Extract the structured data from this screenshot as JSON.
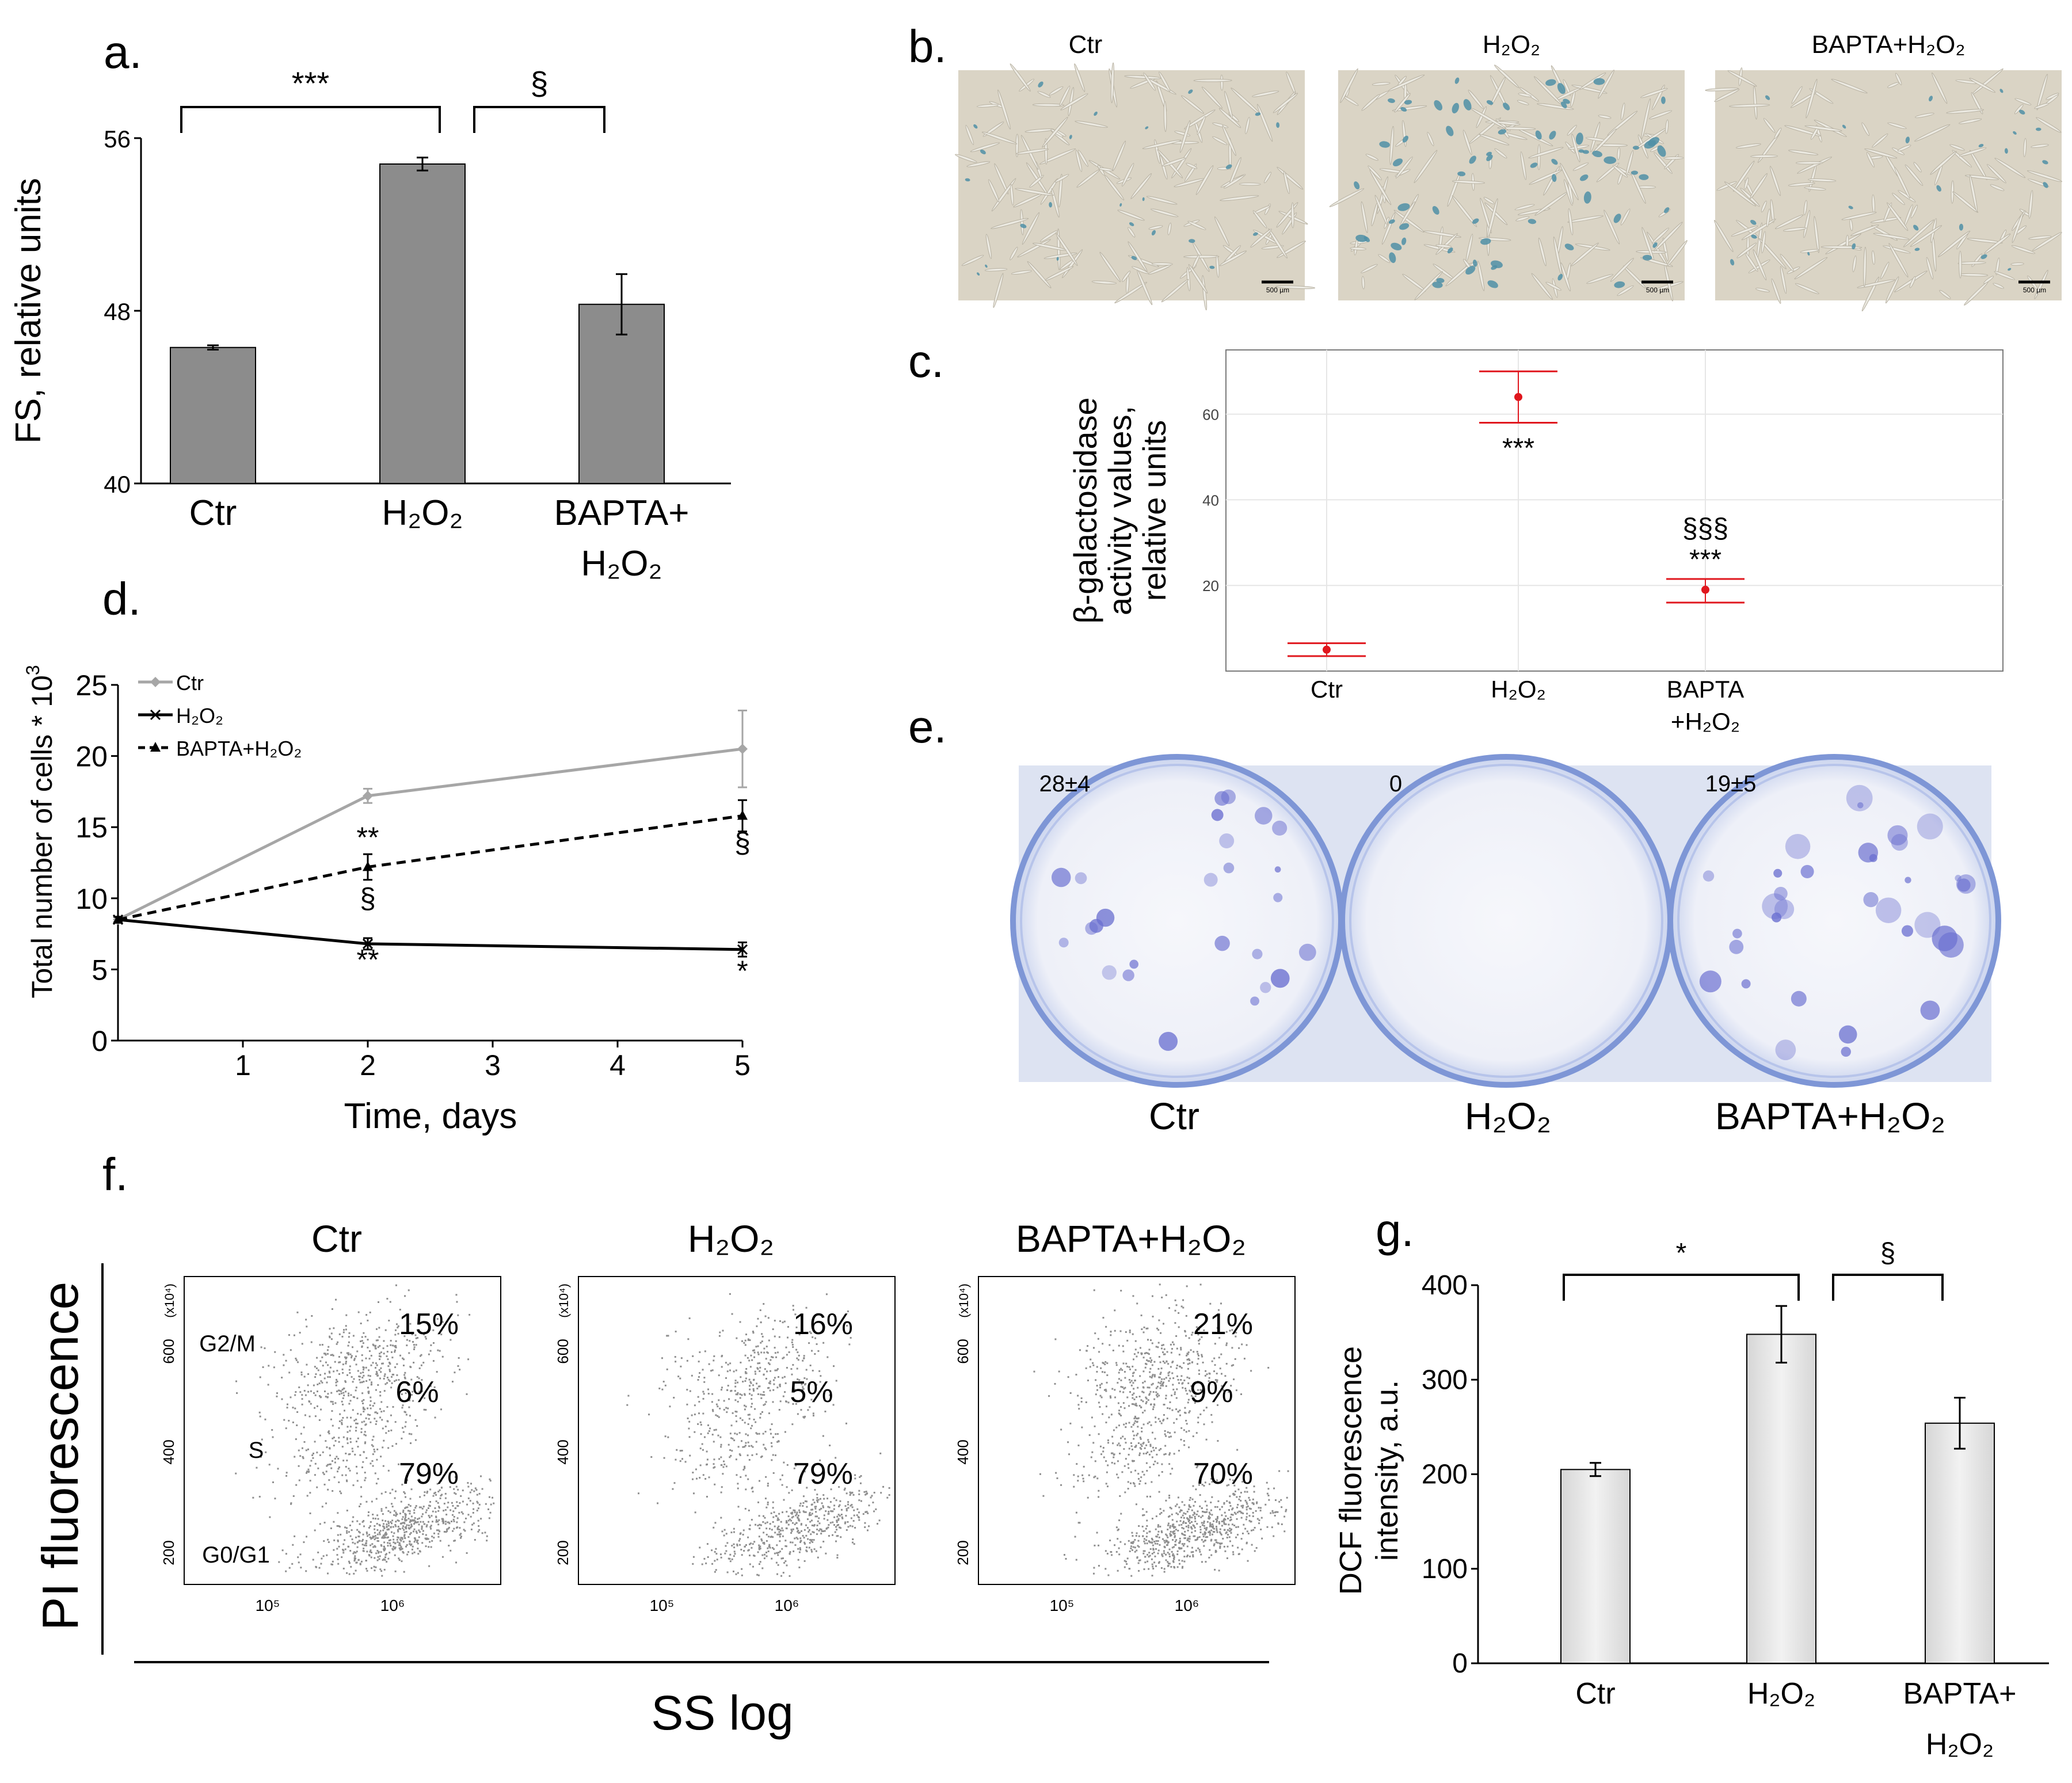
{
  "panels": {
    "a": "a.",
    "b": "b.",
    "c": "c.",
    "d": "d.",
    "e": "e.",
    "f": "f.",
    "g": "g."
  },
  "chart_data": [
    {
      "id": "a",
      "type": "bar",
      "categories": [
        "Ctr",
        "H₂O₂",
        "BAPTA+H₂O₂"
      ],
      "category_lines": [
        [
          "Ctr"
        ],
        [
          "H₂O₂"
        ],
        [
          "BAPTA+",
          "H₂O₂"
        ]
      ],
      "values": [
        46.3,
        54.8,
        48.3
      ],
      "errors": [
        0.1,
        0.3,
        1.4
      ],
      "ylabel": "FS, relative units",
      "ylim": [
        40,
        56
      ],
      "yticks": [
        40,
        48,
        56
      ],
      "brackets": [
        {
          "from": 0,
          "to": 1,
          "label": "***"
        },
        {
          "from": 1,
          "to": 2,
          "label": "§"
        }
      ],
      "bar_color": "#8c8c8c"
    },
    {
      "id": "b",
      "type": "image",
      "images": [
        {
          "title": "Ctr",
          "scale_label": "500 µm",
          "stain_density": "low"
        },
        {
          "title": "H₂O₂",
          "scale_label": "500 µm",
          "stain_density": "high"
        },
        {
          "title": "BAPTA+H₂O₂",
          "scale_label": "500 µm",
          "stain_density": "low"
        }
      ]
    },
    {
      "id": "c",
      "type": "scatter",
      "categories": [
        "Ctr",
        "H₂O₂",
        "BAPTA+H₂O₂"
      ],
      "category_lines": [
        [
          "Ctr"
        ],
        [
          "H₂O₂"
        ],
        [
          "BAPTA",
          "+H₂O₂"
        ]
      ],
      "values": [
        5,
        64,
        19
      ],
      "lower": [
        3.5,
        58,
        16
      ],
      "upper": [
        6.5,
        70,
        21.5
      ],
      "ylabel_lines": [
        "β-galactosidase",
        "activity values,",
        "relative units"
      ],
      "ylim": [
        0,
        75
      ],
      "yticks": [
        20,
        40,
        60
      ],
      "annotations": [
        "",
        "***",
        "§§§\n***"
      ],
      "point_color": "#e0161d",
      "grid": true
    },
    {
      "id": "d",
      "type": "line",
      "x_ticks": [
        1,
        2,
        3,
        4,
        5
      ],
      "xlim": [
        0,
        5
      ],
      "ylim": [
        0,
        25
      ],
      "yticks": [
        0,
        5,
        10,
        15,
        20,
        25
      ],
      "xlabel": "Time, days",
      "ylabel": "Total number of cells * 10",
      "ylabel_sup": "3",
      "legend_position": "top-left",
      "series": [
        {
          "name": "Ctr",
          "x": [
            0,
            2,
            5
          ],
          "y": [
            8.5,
            17.2,
            20.5
          ],
          "err": [
            0.2,
            0.5,
            2.7
          ],
          "color": "#a6a6a6",
          "dash": "solid",
          "marker": "diamond"
        },
        {
          "name": "H₂O₂",
          "x": [
            0,
            2,
            5
          ],
          "y": [
            8.5,
            6.8,
            6.4
          ],
          "err": [
            0.2,
            0.4,
            0.5
          ],
          "color": "#000000",
          "dash": "solid",
          "marker": "x"
        },
        {
          "name": "BAPTA+H₂O₂",
          "x": [
            0,
            2,
            5
          ],
          "y": [
            8.5,
            12.2,
            15.8
          ],
          "err": [
            0.2,
            0.9,
            1.1
          ],
          "color": "#000000",
          "dash": "dashed",
          "marker": "triangle"
        }
      ],
      "annotations": [
        {
          "x": 2,
          "y": 13.6,
          "text": "**"
        },
        {
          "x": 2,
          "y": 9.3,
          "text": "§"
        },
        {
          "x": 2,
          "y": 5.0,
          "text": "**"
        },
        {
          "x": 5,
          "y": 13.2,
          "text": "§"
        },
        {
          "x": 5,
          "y": 4.2,
          "text": "*"
        }
      ]
    },
    {
      "id": "e",
      "type": "image",
      "plates": [
        {
          "label": "Ctr",
          "count": "28±4",
          "colonies": "medium"
        },
        {
          "label": "H₂O₂",
          "count": "0",
          "colonies": "none"
        },
        {
          "label": "BAPTA+H₂O₂",
          "count": "19±5",
          "colonies": "high"
        }
      ]
    },
    {
      "id": "f",
      "type": "scatter",
      "xlabel": "SS log",
      "ylabel": "PI fluorescence",
      "axis_unit": "(x10⁴)",
      "yticks": [
        200,
        400,
        600
      ],
      "xticks": [
        "10⁵",
        "10⁶"
      ],
      "plots": [
        {
          "title": "Ctr",
          "phase_labels": [
            "G2/M",
            "S",
            "G0/G1"
          ],
          "percentages": [
            "15%",
            "6%",
            "79%"
          ]
        },
        {
          "title": "H₂O₂",
          "phase_labels": [],
          "percentages": [
            "16%",
            "5%",
            "79%"
          ]
        },
        {
          "title": "BAPTA+H₂O₂",
          "phase_labels": [],
          "percentages": [
            "21%",
            "9%",
            "70%"
          ]
        }
      ]
    },
    {
      "id": "g",
      "type": "bar",
      "categories": [
        "Ctr",
        "H₂O₂",
        "BAPTA+H₂O₂"
      ],
      "category_lines": [
        [
          "Ctr"
        ],
        [
          "H₂O₂"
        ],
        [
          "BAPTA+",
          "H₂O₂"
        ]
      ],
      "values": [
        205,
        348,
        254
      ],
      "errors": [
        7,
        30,
        27
      ],
      "ylabel_lines": [
        "DCF fluorescence",
        "intensity, a.u."
      ],
      "ylim": [
        0,
        400
      ],
      "yticks": [
        0,
        100,
        200,
        300,
        400
      ],
      "brackets": [
        {
          "from": 0,
          "to": 1,
          "label": "*"
        },
        {
          "from": 1,
          "to": 2,
          "label": "§"
        }
      ],
      "bar_color": "#e6e6e6"
    }
  ]
}
